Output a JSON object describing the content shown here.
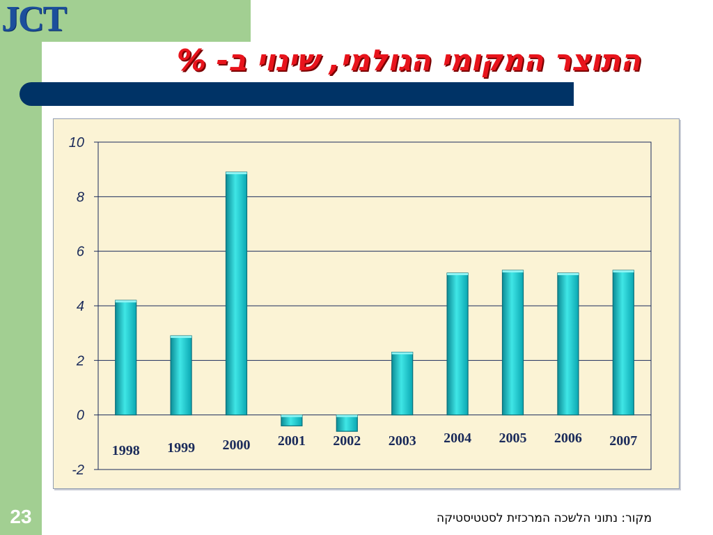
{
  "slide": {
    "logo_text": "JCT",
    "title": "התוצר המקומי הגולמי, שינוי ב- %",
    "page_number": "23",
    "source": "מקור: נתוני הלשכה המרכזית לסטטיסטיקה"
  },
  "colors": {
    "green": "#a2cf92",
    "navy": "#003366",
    "title_red": "#e8141c",
    "bar": "#1fc8c8",
    "bar_edge": "#0b6f7a",
    "plot_bg": "#fbf3d5"
  },
  "chart_data": {
    "type": "bar",
    "categories": [
      "1998",
      "1999",
      "2000",
      "2001",
      "2002",
      "2003",
      "2004",
      "2005",
      "2006",
      "2007"
    ],
    "values": [
      4.2,
      2.9,
      8.9,
      -0.4,
      -0.6,
      2.3,
      5.2,
      5.3,
      5.2,
      5.3
    ],
    "ylim": [
      -2,
      10
    ],
    "yticks": [
      "10",
      "8",
      "6",
      "4",
      "2",
      "0",
      "-2"
    ],
    "ytick_values": [
      10,
      8,
      6,
      4,
      2,
      0,
      -2
    ],
    "grid": true,
    "legend": "none"
  }
}
